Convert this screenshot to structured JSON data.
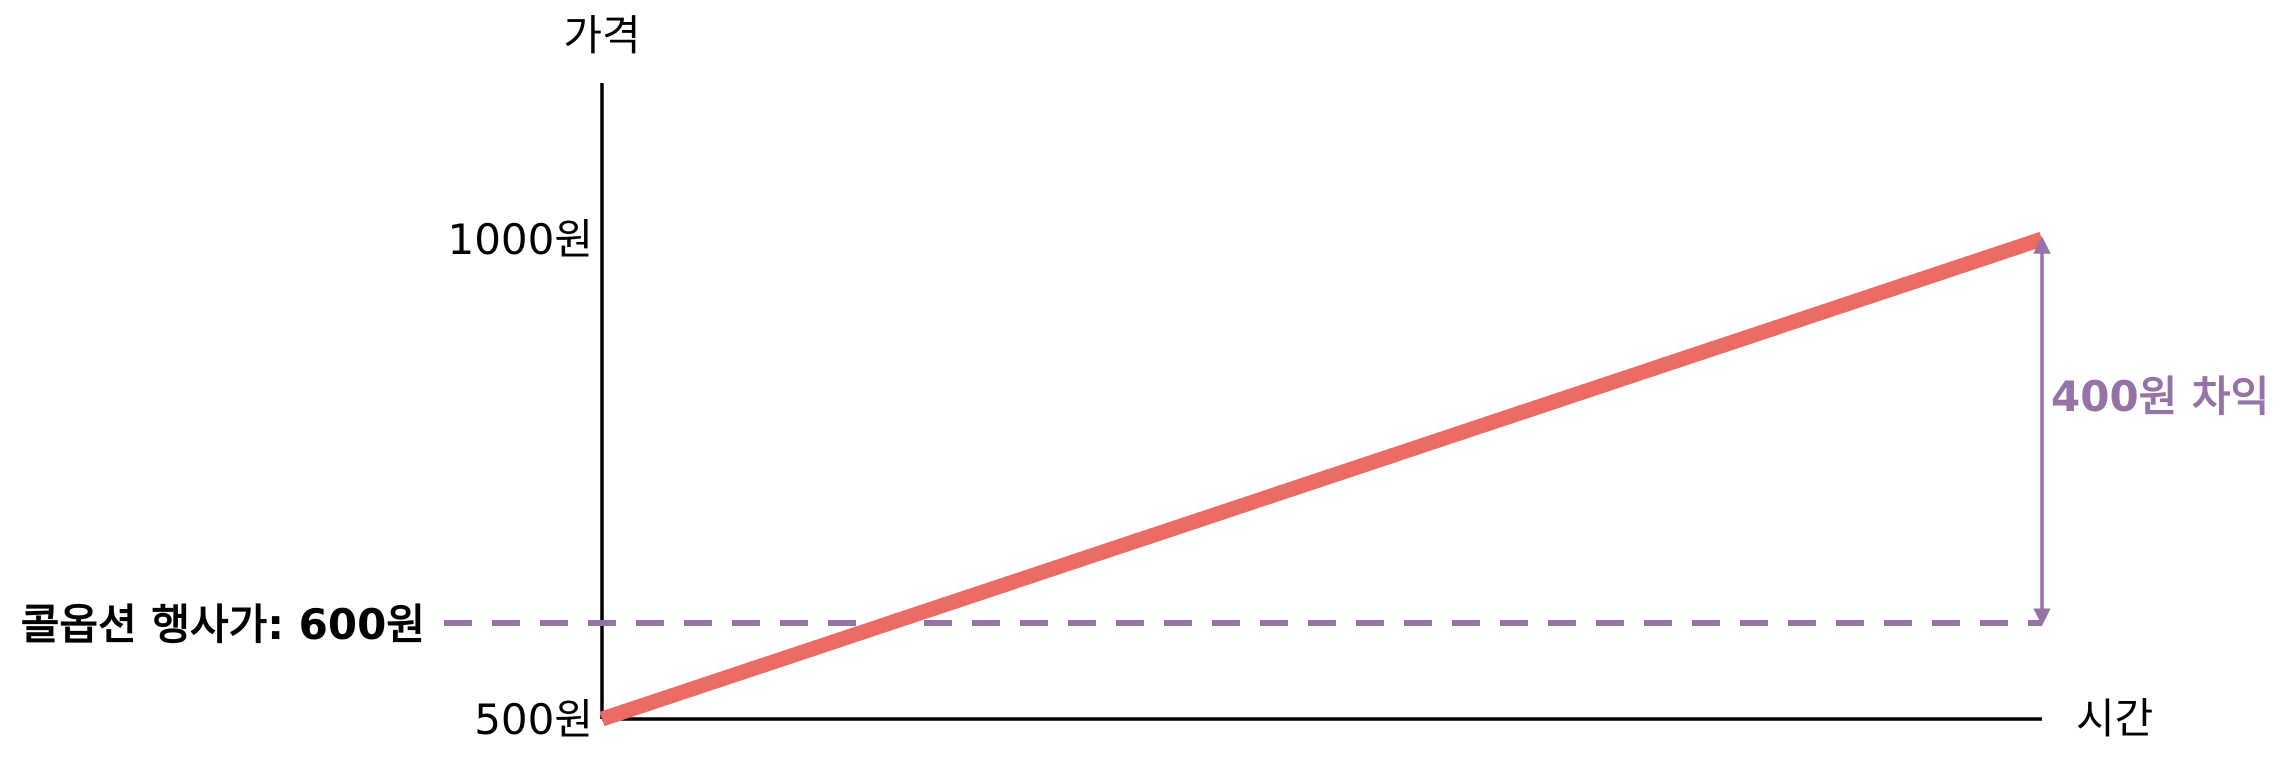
{
  "chart_data": {
    "type": "line",
    "xlabel": "시간",
    "ylabel": "가격",
    "y_ticks": [
      {
        "value": 500,
        "label": "500원"
      },
      {
        "value": 1000,
        "label": "1000원"
      }
    ],
    "ylim": [
      500,
      1000
    ],
    "series": [
      {
        "values": [
          {
            "x": 0,
            "y": 500
          },
          {
            "x": 1,
            "y": 1000
          }
        ],
        "color": "#EA6B66"
      }
    ],
    "reference_line": {
      "value": 600,
      "label": "콜옵션 행사가: 600원",
      "color": "#9673A6",
      "style": "dashed"
    },
    "annotation": {
      "text": "400원 차익",
      "from": 600,
      "to": 1000,
      "color": "#9673A6"
    }
  }
}
